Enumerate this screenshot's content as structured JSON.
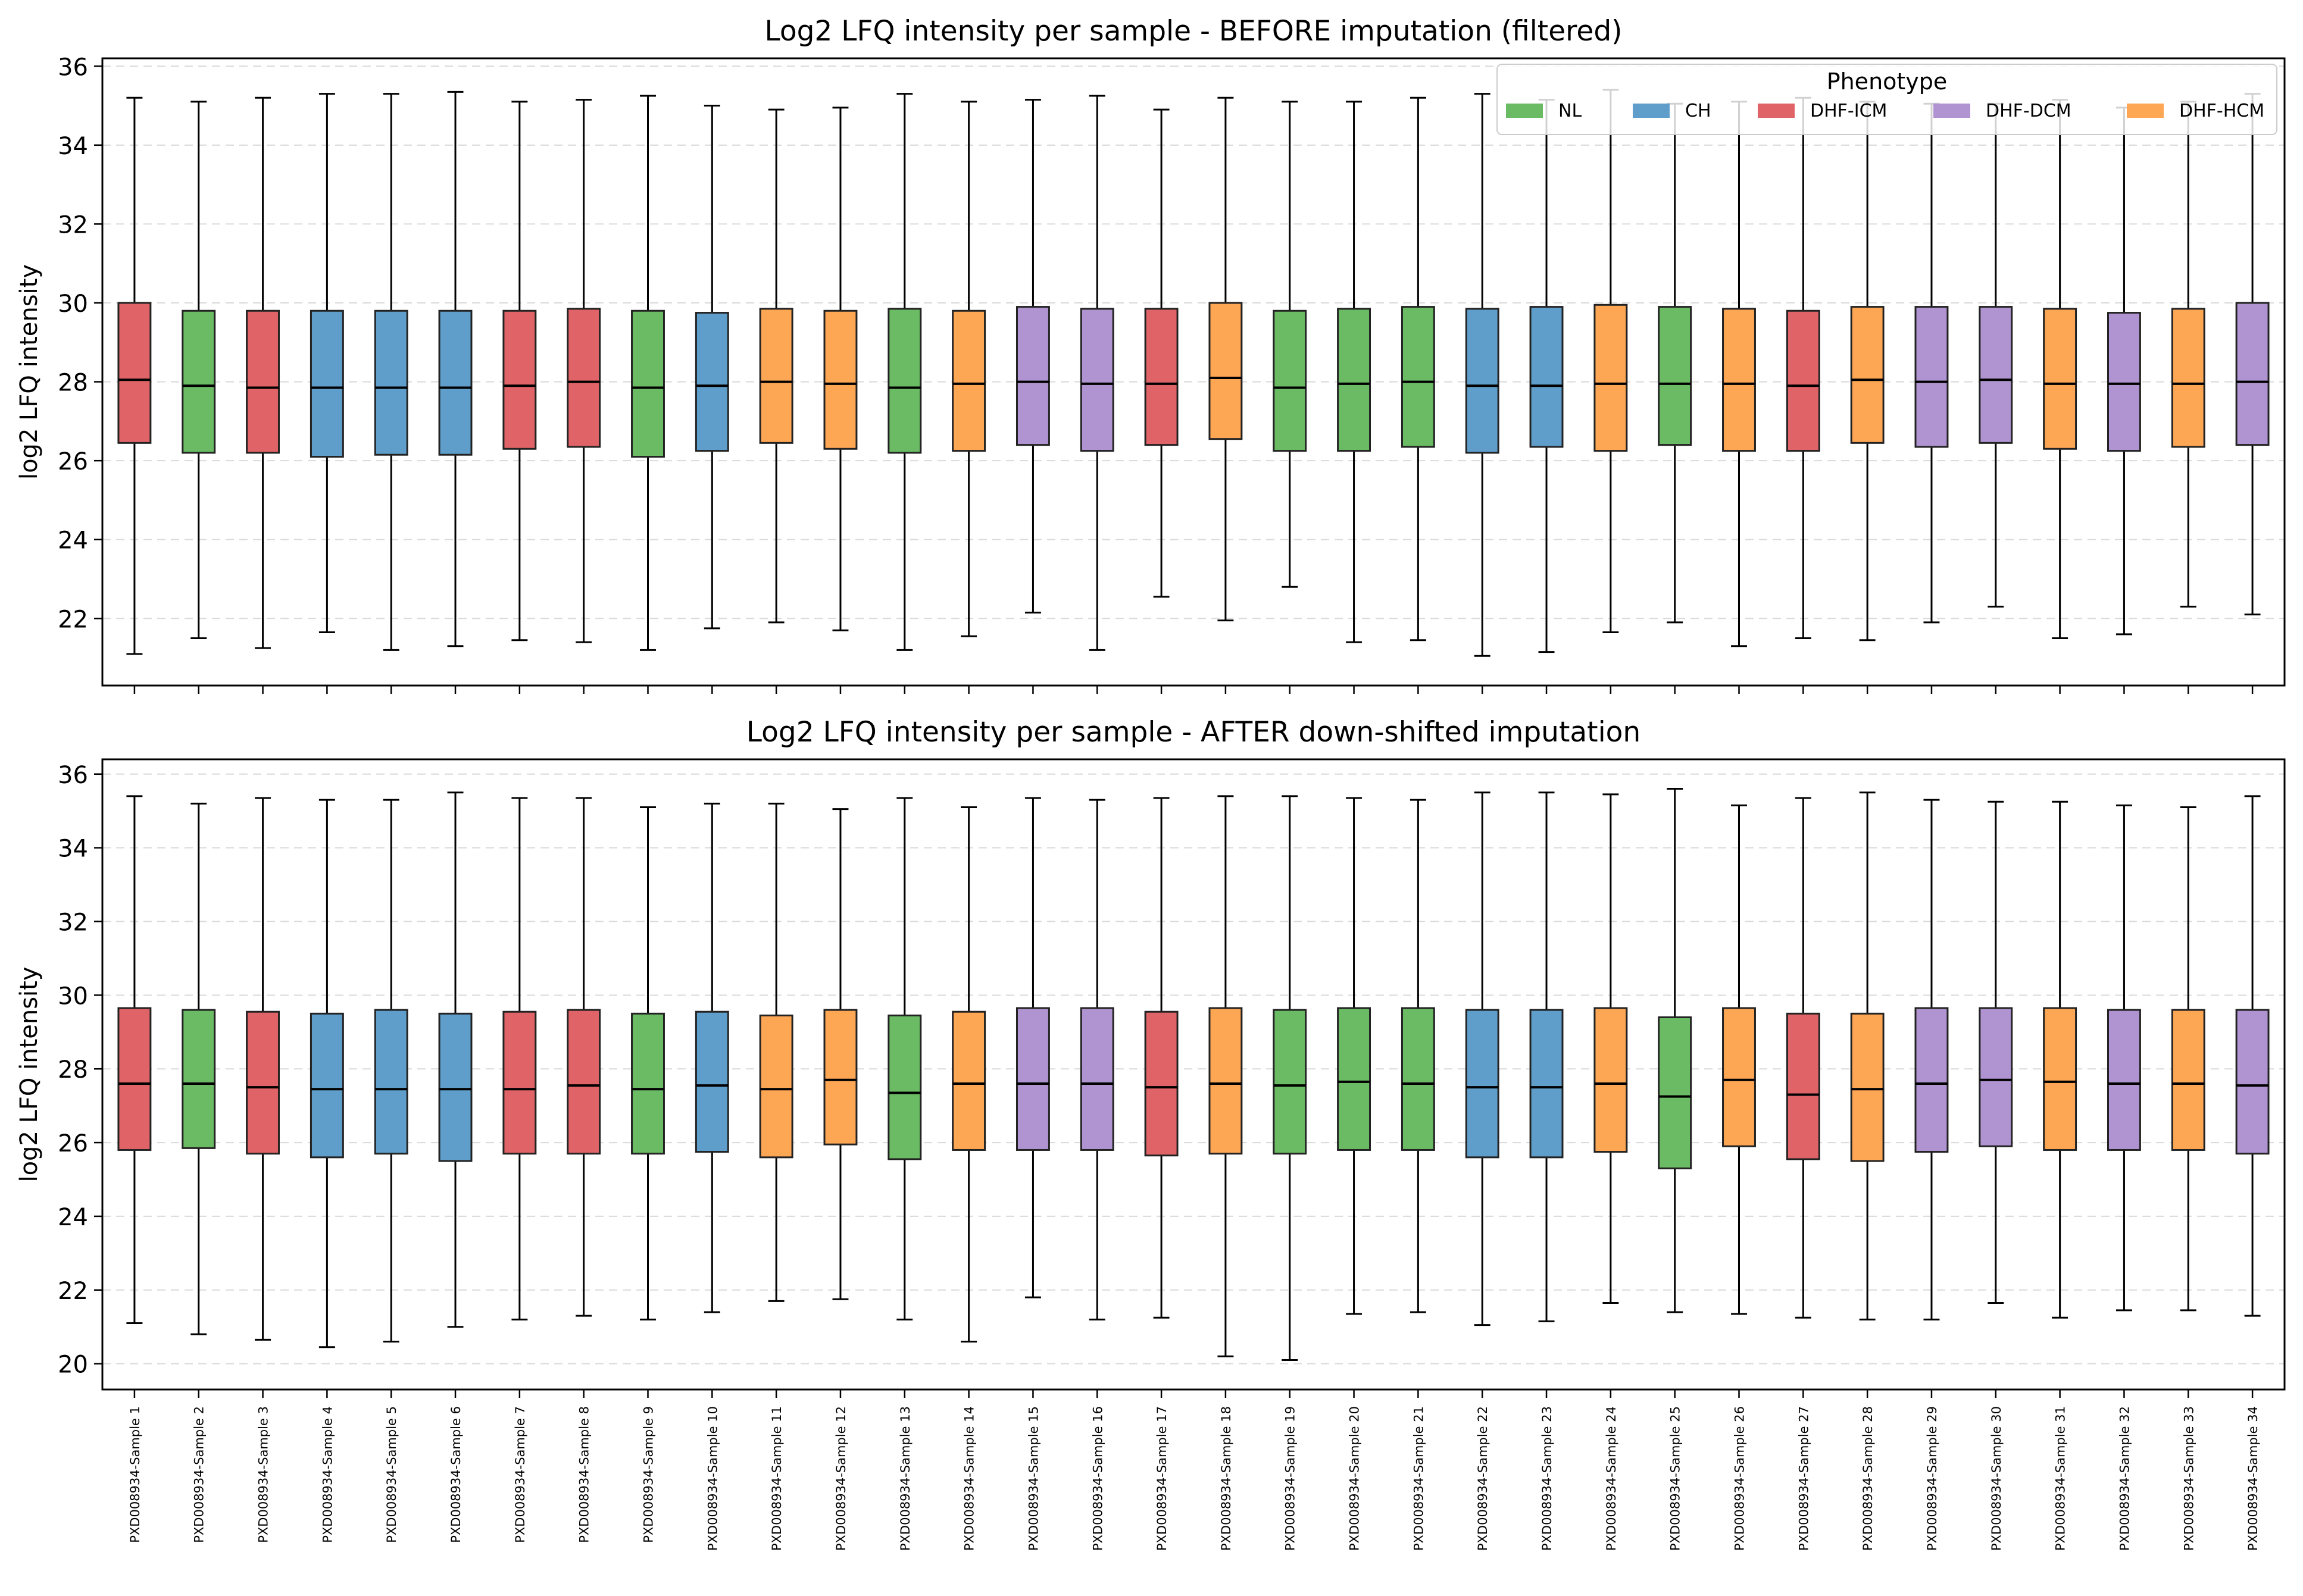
{
  "figure": {
    "ylabel": "log2 LFQ intensity",
    "legend": {
      "title": "Phenotype",
      "placement": "top-right",
      "entries": [
        {
          "label": "NL",
          "color": "#6abb64"
        },
        {
          "label": "CH",
          "color": "#5f9ecb"
        },
        {
          "label": "DHF-ICM",
          "color": "#e06467"
        },
        {
          "label": "DHF-DCM",
          "color": "#b094d1"
        },
        {
          "label": "DHF-HCM",
          "color": "#fda653"
        }
      ]
    }
  },
  "chart_data": [
    {
      "type": "box",
      "title": "Log2 LFQ intensity per sample - BEFORE imputation (filtered)",
      "ylabel": "log2 LFQ intensity",
      "ylim": [
        20.3,
        36.2
      ],
      "yticks": [
        22,
        24,
        26,
        28,
        30,
        32,
        34,
        36
      ],
      "grid": "y",
      "categories": [
        "PXD008934-Sample 1",
        "PXD008934-Sample 2",
        "PXD008934-Sample 3",
        "PXD008934-Sample 4",
        "PXD008934-Sample 5",
        "PXD008934-Sample 6",
        "PXD008934-Sample 7",
        "PXD008934-Sample 8",
        "PXD008934-Sample 9",
        "PXD008934-Sample 10",
        "PXD008934-Sample 11",
        "PXD008934-Sample 12",
        "PXD008934-Sample 13",
        "PXD008934-Sample 14",
        "PXD008934-Sample 15",
        "PXD008934-Sample 16",
        "PXD008934-Sample 17",
        "PXD008934-Sample 18",
        "PXD008934-Sample 19",
        "PXD008934-Sample 20",
        "PXD008934-Sample 21",
        "PXD008934-Sample 22",
        "PXD008934-Sample 23",
        "PXD008934-Sample 24",
        "PXD008934-Sample 25",
        "PXD008934-Sample 26",
        "PXD008934-Sample 27",
        "PXD008934-Sample 28",
        "PXD008934-Sample 29",
        "PXD008934-Sample 30",
        "PXD008934-Sample 31",
        "PXD008934-Sample 32",
        "PXD008934-Sample 33",
        "PXD008934-Sample 34"
      ],
      "phenotype": [
        "DHF-ICM",
        "NL",
        "DHF-ICM",
        "CH",
        "CH",
        "CH",
        "DHF-ICM",
        "DHF-ICM",
        "NL",
        "CH",
        "DHF-HCM",
        "DHF-HCM",
        "NL",
        "DHF-HCM",
        "DHF-DCM",
        "DHF-DCM",
        "DHF-ICM",
        "DHF-HCM",
        "NL",
        "NL",
        "NL",
        "CH",
        "CH",
        "DHF-HCM",
        "NL",
        "DHF-HCM",
        "DHF-ICM",
        "DHF-HCM",
        "DHF-DCM",
        "DHF-DCM",
        "DHF-HCM",
        "DHF-DCM",
        "DHF-HCM",
        "DHF-DCM"
      ],
      "whisker_low": [
        21.1,
        21.5,
        21.25,
        21.65,
        21.2,
        21.3,
        21.45,
        21.4,
        21.2,
        21.75,
        21.9,
        21.7,
        21.2,
        21.55,
        22.15,
        21.2,
        22.55,
        21.95,
        22.8,
        21.4,
        21.45,
        21.05,
        21.15,
        21.65,
        21.9,
        21.3,
        21.5,
        21.45,
        21.9,
        22.3,
        21.5,
        21.6,
        22.3,
        22.1
      ],
      "q1": [
        26.45,
        26.2,
        26.2,
        26.1,
        26.15,
        26.15,
        26.3,
        26.35,
        26.1,
        26.25,
        26.45,
        26.3,
        26.2,
        26.25,
        26.4,
        26.25,
        26.4,
        26.55,
        26.25,
        26.25,
        26.35,
        26.2,
        26.35,
        26.25,
        26.4,
        26.25,
        26.25,
        26.45,
        26.35,
        26.45,
        26.3,
        26.25,
        26.35,
        26.4
      ],
      "median": [
        28.05,
        27.9,
        27.85,
        27.85,
        27.85,
        27.85,
        27.9,
        28.0,
        27.85,
        27.9,
        28.0,
        27.95,
        27.85,
        27.95,
        28.0,
        27.95,
        27.95,
        28.1,
        27.85,
        27.95,
        28.0,
        27.9,
        27.9,
        27.95,
        27.95,
        27.95,
        27.9,
        28.05,
        28.0,
        28.05,
        27.95,
        27.95,
        27.95,
        28.0
      ],
      "q3": [
        30.0,
        29.8,
        29.8,
        29.8,
        29.8,
        29.8,
        29.8,
        29.85,
        29.8,
        29.75,
        29.85,
        29.8,
        29.85,
        29.8,
        29.9,
        29.85,
        29.85,
        30.0,
        29.8,
        29.85,
        29.9,
        29.85,
        29.9,
        29.95,
        29.9,
        29.85,
        29.8,
        29.9,
        29.9,
        29.9,
        29.85,
        29.75,
        29.85,
        30.0
      ],
      "whisker_high": [
        35.2,
        35.1,
        35.2,
        35.3,
        35.3,
        35.35,
        35.1,
        35.15,
        35.25,
        35.0,
        34.9,
        34.95,
        35.3,
        35.1,
        35.15,
        35.25,
        34.9,
        35.2,
        35.1,
        35.1,
        35.2,
        35.3,
        35.15,
        35.4,
        35.05,
        35.1,
        35.2,
        35.1,
        35.05,
        35.05,
        35.15,
        34.95,
        35.1,
        35.3
      ]
    },
    {
      "type": "box",
      "title": "Log2 LFQ intensity per sample - AFTER down-shifted imputation",
      "ylabel": "log2 LFQ intensity",
      "ylim": [
        19.3,
        36.4
      ],
      "yticks": [
        20,
        22,
        24,
        26,
        28,
        30,
        32,
        34,
        36
      ],
      "grid": "y",
      "categories": [
        "PXD008934-Sample 1",
        "PXD008934-Sample 2",
        "PXD008934-Sample 3",
        "PXD008934-Sample 4",
        "PXD008934-Sample 5",
        "PXD008934-Sample 6",
        "PXD008934-Sample 7",
        "PXD008934-Sample 8",
        "PXD008934-Sample 9",
        "PXD008934-Sample 10",
        "PXD008934-Sample 11",
        "PXD008934-Sample 12",
        "PXD008934-Sample 13",
        "PXD008934-Sample 14",
        "PXD008934-Sample 15",
        "PXD008934-Sample 16",
        "PXD008934-Sample 17",
        "PXD008934-Sample 18",
        "PXD008934-Sample 19",
        "PXD008934-Sample 20",
        "PXD008934-Sample 21",
        "PXD008934-Sample 22",
        "PXD008934-Sample 23",
        "PXD008934-Sample 24",
        "PXD008934-Sample 25",
        "PXD008934-Sample 26",
        "PXD008934-Sample 27",
        "PXD008934-Sample 28",
        "PXD008934-Sample 29",
        "PXD008934-Sample 30",
        "PXD008934-Sample 31",
        "PXD008934-Sample 32",
        "PXD008934-Sample 33",
        "PXD008934-Sample 34"
      ],
      "phenotype": [
        "DHF-ICM",
        "NL",
        "DHF-ICM",
        "CH",
        "CH",
        "CH",
        "DHF-ICM",
        "DHF-ICM",
        "NL",
        "CH",
        "DHF-HCM",
        "DHF-HCM",
        "NL",
        "DHF-HCM",
        "DHF-DCM",
        "DHF-DCM",
        "DHF-ICM",
        "DHF-HCM",
        "NL",
        "NL",
        "NL",
        "CH",
        "CH",
        "DHF-HCM",
        "NL",
        "DHF-HCM",
        "DHF-ICM",
        "DHF-HCM",
        "DHF-DCM",
        "DHF-DCM",
        "DHF-HCM",
        "DHF-DCM",
        "DHF-HCM",
        "DHF-DCM"
      ],
      "whisker_low": [
        21.1,
        20.8,
        20.65,
        20.45,
        20.6,
        21.0,
        21.2,
        21.3,
        21.2,
        21.4,
        21.7,
        21.75,
        21.2,
        20.6,
        21.8,
        21.2,
        21.25,
        20.2,
        20.1,
        21.35,
        21.4,
        21.05,
        21.15,
        21.65,
        21.4,
        21.35,
        21.25,
        21.2,
        21.2,
        21.65,
        21.25,
        21.45,
        21.45,
        21.3
      ],
      "q1": [
        25.8,
        25.85,
        25.7,
        25.6,
        25.7,
        25.5,
        25.7,
        25.7,
        25.7,
        25.75,
        25.6,
        25.95,
        25.55,
        25.8,
        25.8,
        25.8,
        25.65,
        25.7,
        25.7,
        25.8,
        25.8,
        25.6,
        25.6,
        25.75,
        25.3,
        25.9,
        25.55,
        25.5,
        25.75,
        25.9,
        25.8,
        25.8,
        25.8,
        25.7
      ],
      "median": [
        27.6,
        27.6,
        27.5,
        27.45,
        27.45,
        27.45,
        27.45,
        27.55,
        27.45,
        27.55,
        27.45,
        27.7,
        27.35,
        27.6,
        27.6,
        27.6,
        27.5,
        27.6,
        27.55,
        27.65,
        27.6,
        27.5,
        27.5,
        27.6,
        27.25,
        27.7,
        27.3,
        27.45,
        27.6,
        27.7,
        27.65,
        27.6,
        27.6,
        27.55
      ],
      "q3": [
        29.65,
        29.6,
        29.55,
        29.5,
        29.6,
        29.5,
        29.55,
        29.6,
        29.5,
        29.55,
        29.45,
        29.6,
        29.45,
        29.55,
        29.65,
        29.65,
        29.55,
        29.65,
        29.6,
        29.65,
        29.65,
        29.6,
        29.6,
        29.65,
        29.4,
        29.65,
        29.5,
        29.5,
        29.65,
        29.65,
        29.65,
        29.6,
        29.6,
        29.6
      ],
      "whisker_high": [
        35.4,
        35.2,
        35.35,
        35.3,
        35.3,
        35.5,
        35.35,
        35.35,
        35.1,
        35.2,
        35.2,
        35.05,
        35.35,
        35.1,
        35.35,
        35.3,
        35.35,
        35.4,
        35.4,
        35.35,
        35.3,
        35.5,
        35.5,
        35.45,
        35.6,
        35.15,
        35.35,
        35.5,
        35.3,
        35.25,
        35.25,
        35.15,
        35.1,
        35.4
      ]
    }
  ]
}
